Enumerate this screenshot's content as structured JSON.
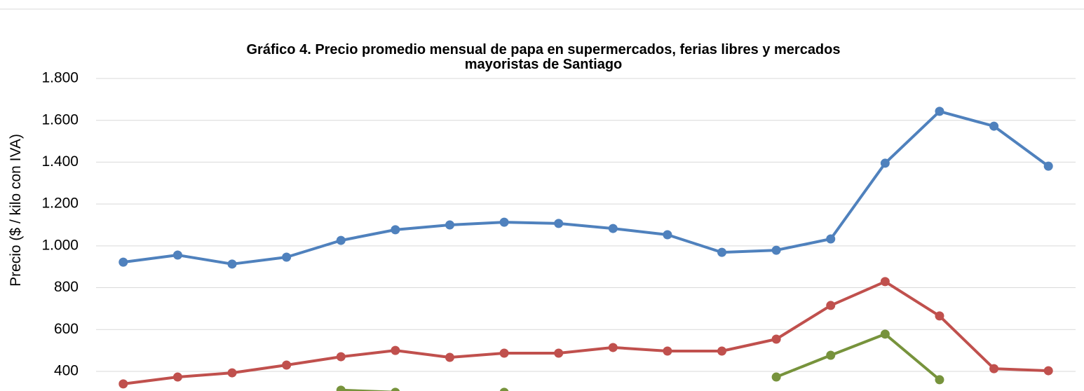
{
  "chart_data": {
    "type": "line",
    "title": [
      "Gráfico 4. Precio promedio mensual de papa en supermercados, ferias libres y mercados",
      "mayoristas de Santiago"
    ],
    "y_label": "Precio ($ / kilo con IVA)",
    "categories": [
      null,
      null,
      null,
      null,
      null,
      null,
      null,
      null,
      null,
      null,
      null,
      null,
      null,
      null,
      null,
      null,
      null,
      null
    ],
    "series": [
      {
        "color": "#4f81bd",
        "values": [
          922,
          956,
          913,
          946,
          1026,
          1077,
          1100,
          1113,
          1107,
          1083,
          1053,
          969,
          979,
          1033,
          1395,
          1643,
          1572,
          1381
        ]
      },
      {
        "color": "#c0504d",
        "values": [
          340,
          373,
          393,
          430,
          470,
          500,
          467,
          487,
          487,
          514,
          497,
          497,
          554,
          715,
          829,
          665,
          413,
          403
        ]
      },
      {
        "color": "#77933c",
        "values": [
          null,
          null,
          null,
          null,
          310,
          300,
          null,
          300,
          null,
          null,
          null,
          null,
          373,
          477,
          578,
          360,
          null,
          null
        ]
      }
    ],
    "ylim": [
      0,
      1800
    ],
    "yticks": [
      {
        "value": 400,
        "label": "400"
      },
      {
        "value": 600,
        "label": "600"
      },
      {
        "value": 800,
        "label": "800"
      },
      {
        "value": 1000,
        "label": "1.000"
      },
      {
        "value": 1200,
        "label": "1.200"
      },
      {
        "value": 1400,
        "label": "1.400"
      },
      {
        "value": 1600,
        "label": "1.600"
      },
      {
        "value": 1800,
        "label": "1.800"
      }
    ],
    "grid": true
  }
}
